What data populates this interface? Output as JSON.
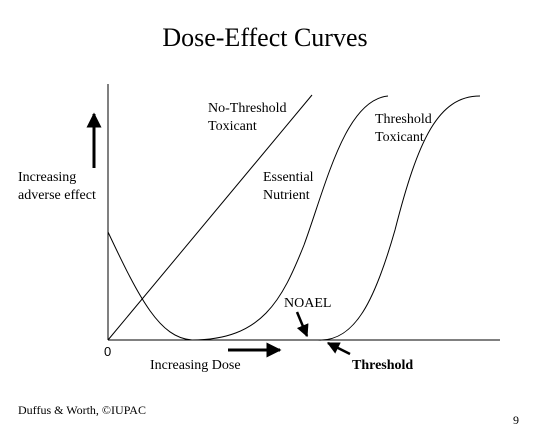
{
  "slide": {
    "title": "Dose-Effect Curves",
    "footer": "Duffus & Worth, ©IUPAC",
    "page_number": "9"
  },
  "diagram": {
    "y_axis_label_line1": "Increasing",
    "y_axis_label_line2": "adverse effect",
    "x_axis_label": "Increasing Dose",
    "origin_label": "0",
    "curves": {
      "no_threshold_line1": "No-Threshold",
      "no_threshold_line2": "Toxicant",
      "essential_line1": "Essential",
      "essential_line2": "Nutrient",
      "threshold_line1": "Threshold",
      "threshold_line2": "Toxicant"
    },
    "noael_label": "NOAEL",
    "threshold_label": "Threshold"
  }
}
